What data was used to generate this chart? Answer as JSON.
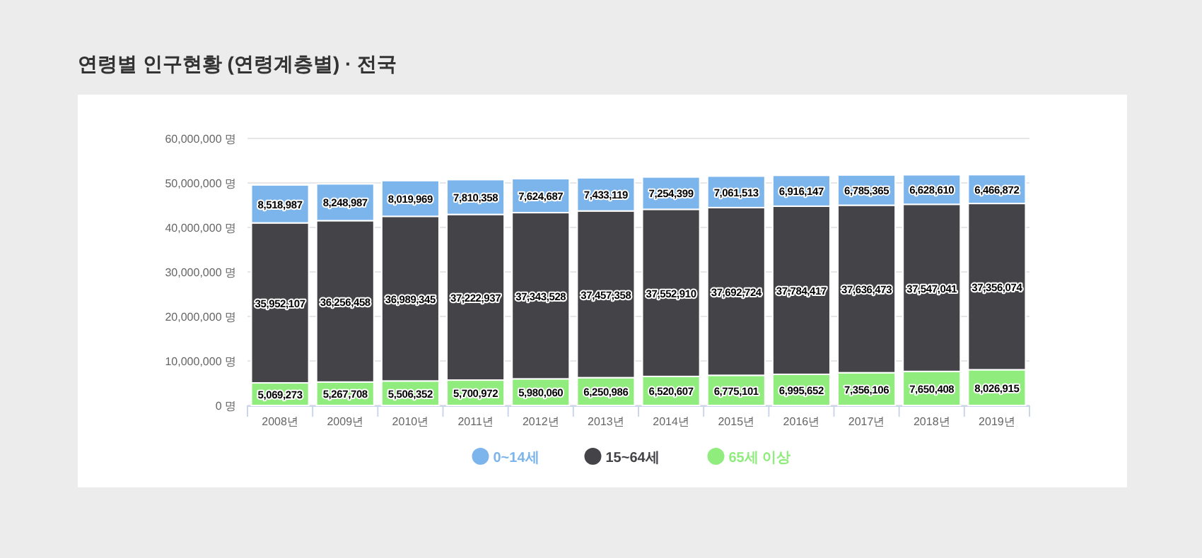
{
  "chart_data": {
    "type": "bar",
    "title": "연령별 인구현황 (연령계층별) · 전국",
    "stacked": true,
    "categories": [
      "2008년",
      "2009년",
      "2010년",
      "2011년",
      "2012년",
      "2013년",
      "2014년",
      "2015년",
      "2016년",
      "2017년",
      "2018년",
      "2019년"
    ],
    "series": [
      {
        "name": "65세 이상",
        "color": "#90ed7d",
        "values": [
          5069273,
          5267708,
          5506352,
          5700972,
          5980060,
          6250986,
          6520607,
          6775101,
          6995652,
          7356106,
          7650408,
          8026915
        ],
        "value_labels": [
          "5,069,273",
          "5,267,708",
          "5,506,352",
          "5,700,972",
          "5,980,060",
          "6,250,986",
          "6,520,607",
          "6,775,101",
          "6,995,652",
          "7,356,106",
          "7,650,408",
          "8,026,915"
        ]
      },
      {
        "name": "15~64세",
        "color": "#434348",
        "values": [
          35952107,
          36256458,
          36989345,
          37222937,
          37343528,
          37457358,
          37552910,
          37692724,
          37784417,
          37636473,
          37547041,
          37356074
        ],
        "value_labels": [
          "35,952,107",
          "36,256,458",
          "36,989,345",
          "37,222,937",
          "37,343,528",
          "37,457,358",
          "37,552,910",
          "37,692,724",
          "37,784,417",
          "37,636,473",
          "37,547,041",
          "37,356,074"
        ]
      },
      {
        "name": "0~14세",
        "color": "#7cb5ec",
        "values": [
          8518987,
          8248987,
          8019969,
          7810358,
          7624687,
          7433119,
          7254399,
          7061513,
          6916147,
          6785365,
          6628610,
          6466872
        ],
        "value_labels": [
          "8,518,987",
          "8,248,987",
          "8,019,969",
          "7,810,358",
          "7,624,687",
          "7,433,119",
          "7,254,399",
          "7,061,513",
          "6,916,147",
          "6,785,365",
          "6,628,610",
          "6,466,872"
        ]
      }
    ],
    "ylim": [
      0,
      60000000
    ],
    "yticks": [
      {
        "value": 0,
        "label": "0 명"
      },
      {
        "value": 10000000,
        "label": "10,000,000 명"
      },
      {
        "value": 20000000,
        "label": "20,000,000 명"
      },
      {
        "value": 30000000,
        "label": "30,000,000 명"
      },
      {
        "value": 40000000,
        "label": "40,000,000 명"
      },
      {
        "value": 50000000,
        "label": "50,000,000 명"
      },
      {
        "value": 60000000,
        "label": "60,000,000 명"
      }
    ],
    "grid": "y",
    "legend": "bottom"
  }
}
